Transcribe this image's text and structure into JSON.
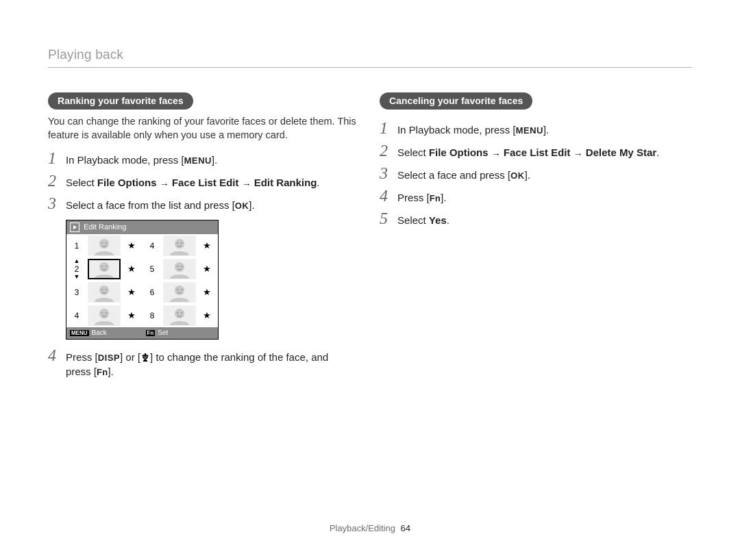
{
  "header": {
    "breadcrumb": "Playing back"
  },
  "footer": {
    "section": "Playback/Editing",
    "page": "64"
  },
  "chips": {
    "menu": "MENU",
    "ok": "OK",
    "fn": "Fn",
    "disp": "DISP"
  },
  "arrow": "→",
  "left": {
    "pill": "Ranking your favorite faces",
    "intro": "You can change the ranking of your favorite faces or delete them. This feature is available only when you use a memory card.",
    "steps": {
      "s1_a": "In Playback mode, press [",
      "s1_b": "].",
      "s2_a": "Select ",
      "s2_b1": "File Options",
      "s2_b2": "Face List Edit",
      "s2_b3": "Edit Ranking",
      "s2_c": ".",
      "s3_a": "Select a face from the list and press [",
      "s3_b": "].",
      "s4_a": "Press [",
      "s4_b": "] or [",
      "s4_c": "] to change the ranking of the face, and press [",
      "s4_d": "]."
    },
    "lcd": {
      "title": "Edit Ranking",
      "back_label": "Back",
      "set_label": "Set",
      "back_key": "MENU",
      "set_key": "Fn",
      "rows": [
        {
          "l_num": "1",
          "r_num": "4"
        },
        {
          "l_num": "2",
          "r_num": "5",
          "selected": true
        },
        {
          "l_num": "3",
          "r_num": "6"
        },
        {
          "l_num": "4",
          "r_num": "8"
        }
      ],
      "star": "★"
    }
  },
  "right": {
    "pill": "Canceling your favorite faces",
    "steps": {
      "s1_a": "In Playback mode, press [",
      "s1_b": "].",
      "s2_a": "Select ",
      "s2_b1": "File Options",
      "s2_b2": "Face List Edit",
      "s2_b3": "Delete My Star",
      "s2_c": ".",
      "s3_a": "Select a face and press [",
      "s3_b": "].",
      "s4_a": "Press [",
      "s4_b": "].",
      "s5_a": "Select ",
      "s5_b": "Yes",
      "s5_c": "."
    }
  },
  "colors": {
    "pill_bg": "#555555",
    "header_rule": "#b0b0b0",
    "header_text": "#9a9a9a",
    "lcd_bar": "#8a8a8a"
  }
}
